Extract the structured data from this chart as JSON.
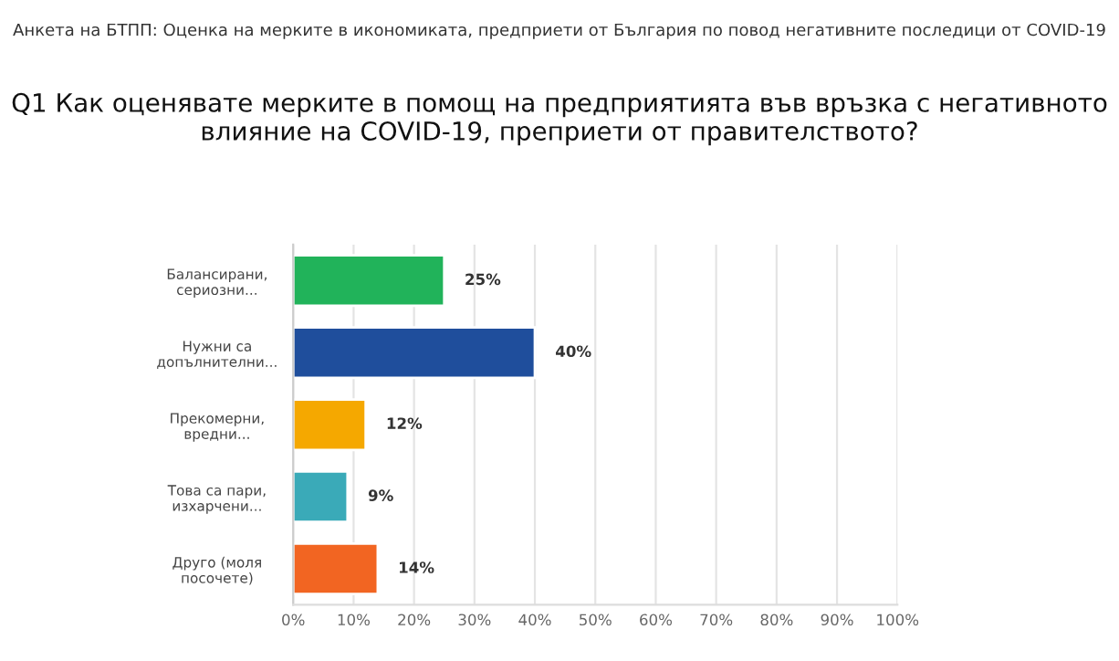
{
  "chart_data": {
    "type": "bar",
    "orientation": "horizontal",
    "title": "Анкета на БТПП: Оценка на мерките в икономиката, предприети от България по повод негативните последици от COVID-19",
    "subtitle": "Q1 Как оценявате мерките в помощ на предприятията във връзка с негативното влияние на COVID-19, преприети от правителството?",
    "categories": [
      "Балансирани,\nсериозни...",
      "Нужни са\nдопълнителни...",
      "Прекомерни,\nвредни...",
      "Това са пари,\nизхарчени...",
      "Друго (моля\nпосочете)"
    ],
    "values": [
      25,
      40,
      12,
      9,
      14
    ],
    "colors": [
      "#21b35a",
      "#1f4e9c",
      "#f5a800",
      "#3aaab8",
      "#f26522"
    ],
    "value_labels": [
      "25%",
      "40%",
      "12%",
      "9%",
      "14%"
    ],
    "xlim": [
      0,
      100
    ],
    "xticks": [
      {
        "value": 0,
        "label": "0%"
      },
      {
        "value": 10,
        "label": "10%"
      },
      {
        "value": 20,
        "label": "20%"
      },
      {
        "value": 30,
        "label": "30%"
      },
      {
        "value": 40,
        "label": "40%"
      },
      {
        "value": 50,
        "label": "50%"
      },
      {
        "value": 60,
        "label": "60%"
      },
      {
        "value": 70,
        "label": "70%"
      },
      {
        "value": 80,
        "label": "80%"
      },
      {
        "value": 90,
        "label": "90%"
      },
      {
        "value": 100,
        "label": "100%"
      }
    ],
    "grid": "x"
  }
}
